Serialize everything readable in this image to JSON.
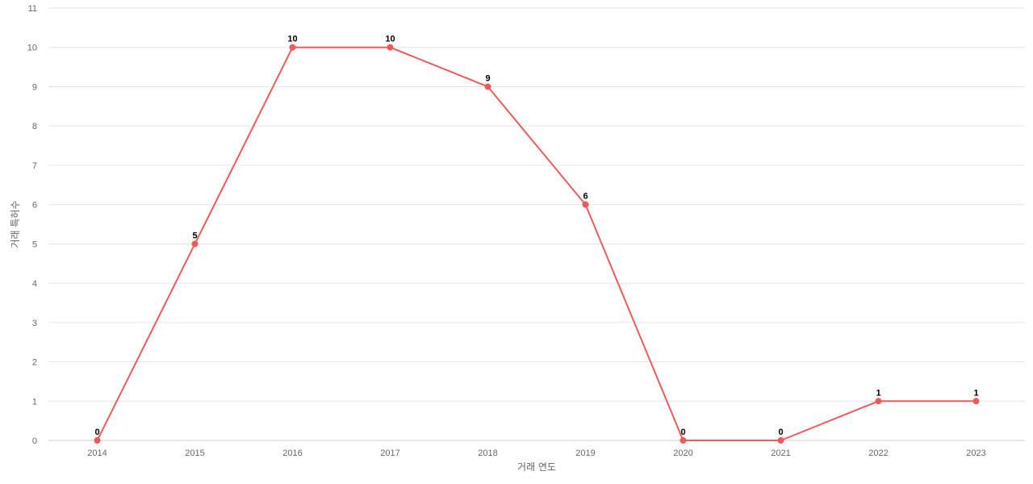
{
  "chart_data": {
    "type": "line",
    "title": "",
    "xlabel": "거래 연도",
    "ylabel": "거래 특허수",
    "x": [
      "2014",
      "2015",
      "2016",
      "2017",
      "2018",
      "2019",
      "2020",
      "2021",
      "2022",
      "2023"
    ],
    "series": [
      {
        "values": [
          0,
          5,
          10,
          10,
          9,
          6,
          0,
          0,
          1,
          1
        ],
        "color": "#ee5a5a"
      }
    ],
    "ylim": [
      0,
      11
    ],
    "yticks": [
      "0",
      "1",
      "2",
      "3",
      "4",
      "5",
      "6",
      "7",
      "8",
      "9",
      "10",
      "11"
    ],
    "grid": true,
    "legend": "none",
    "data_labels": true
  }
}
